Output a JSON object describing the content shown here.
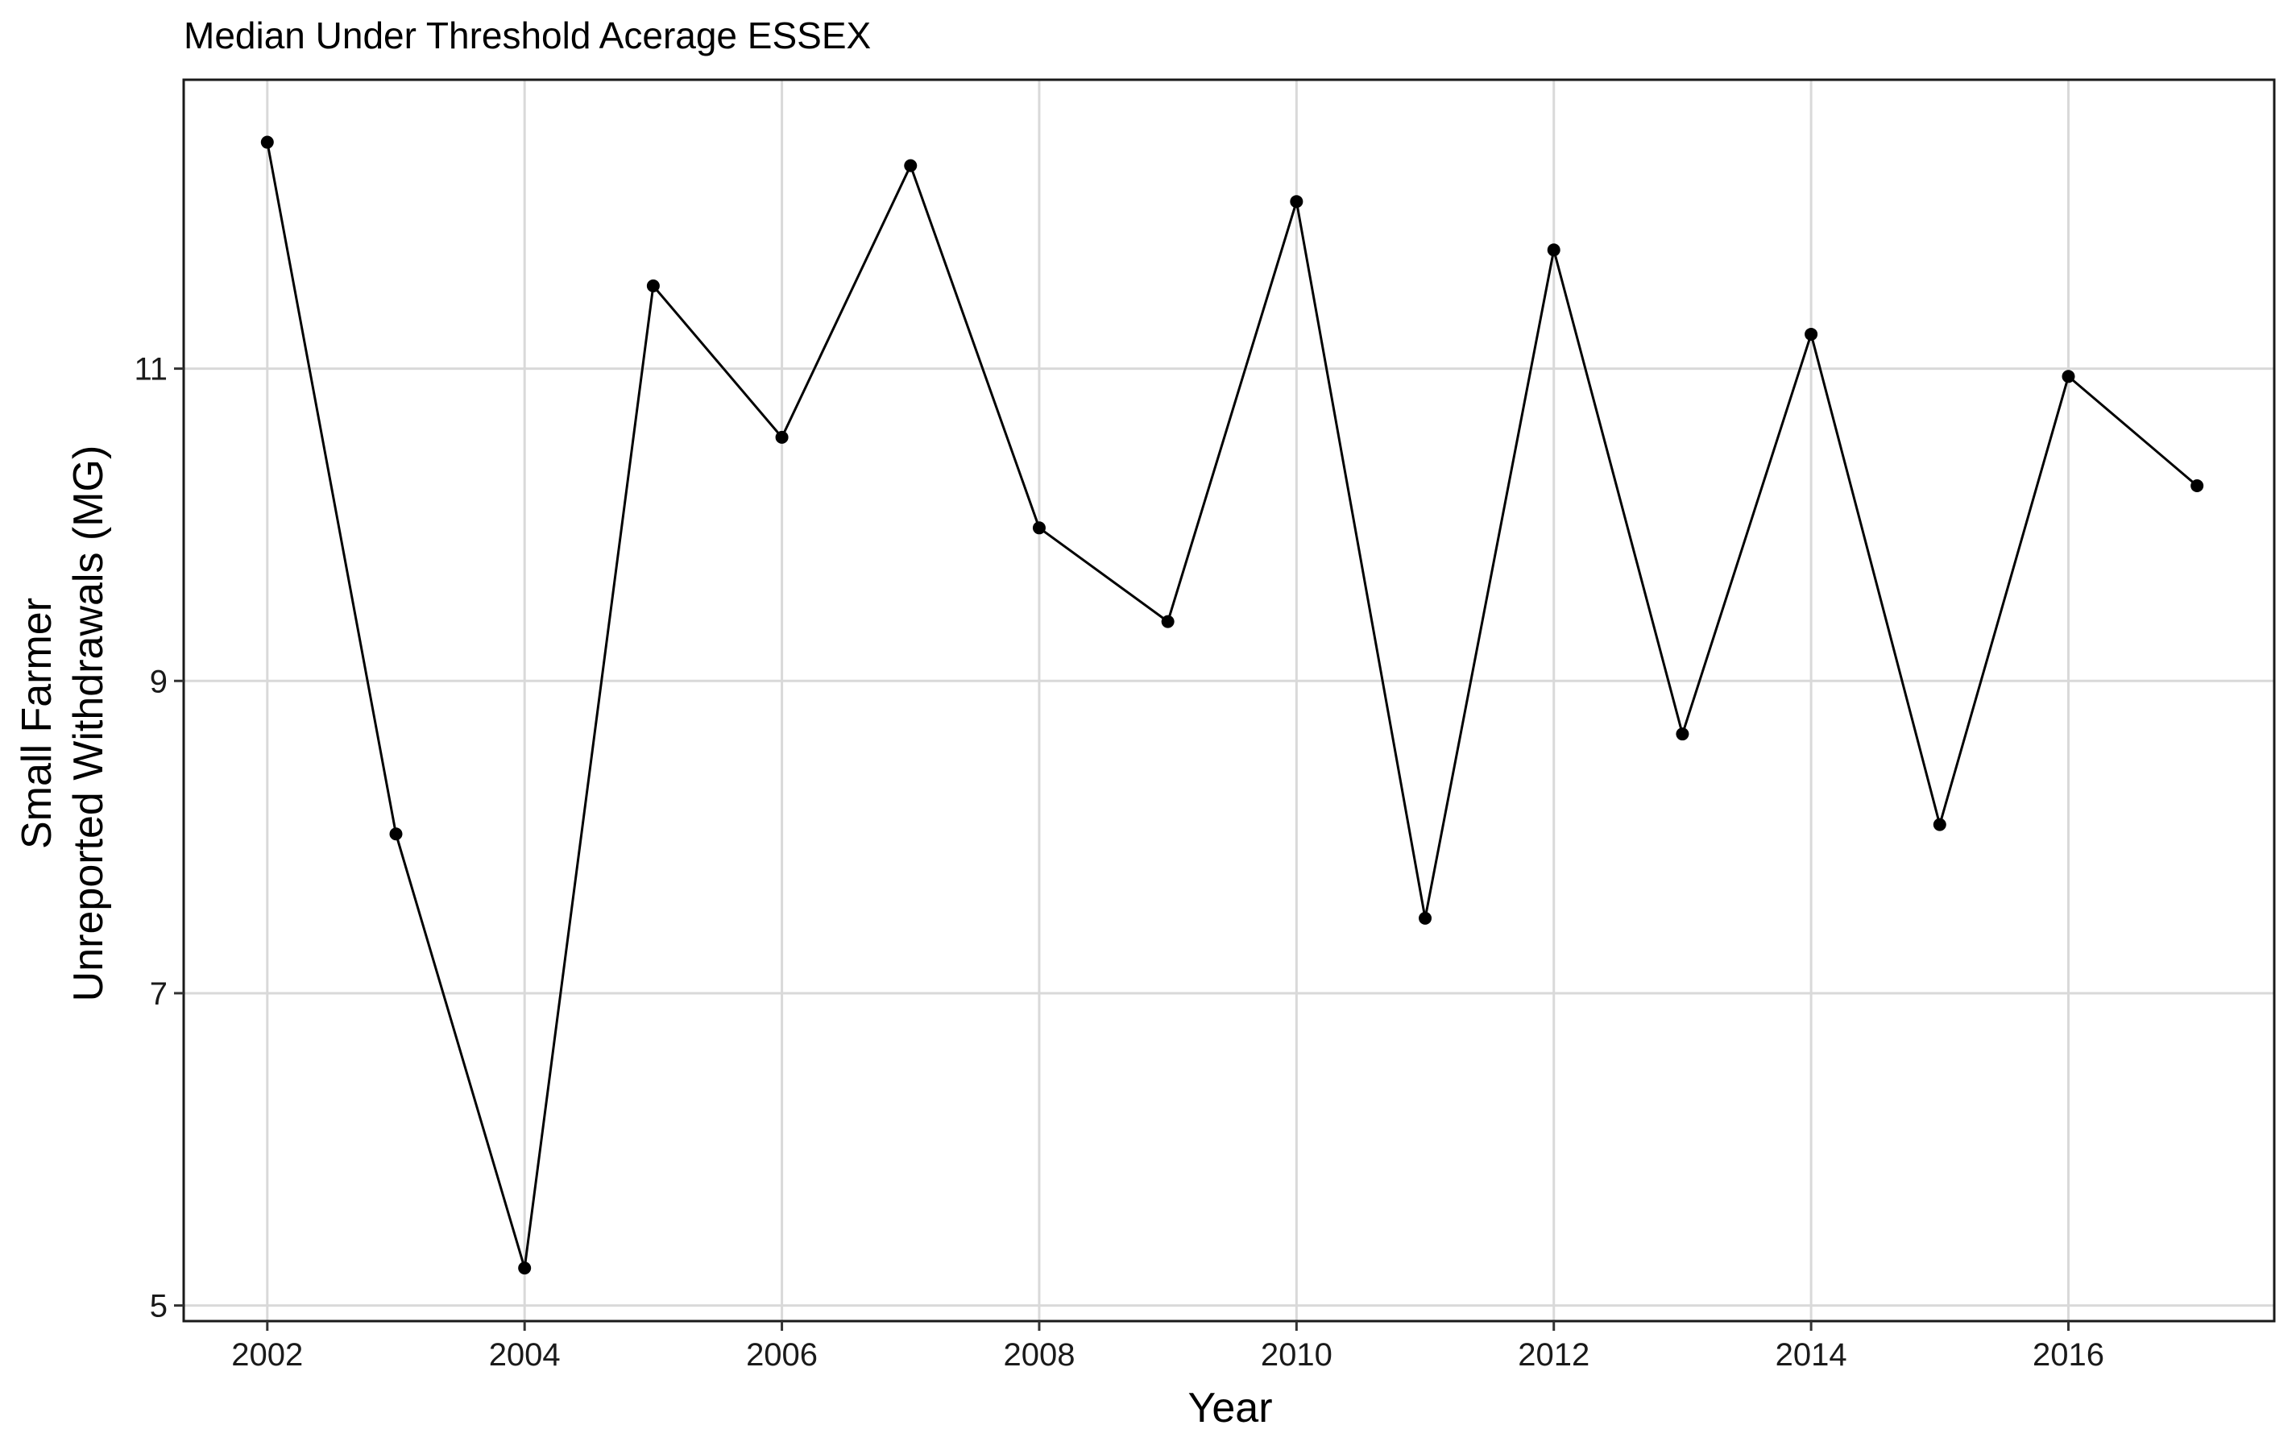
{
  "chart_data": {
    "type": "line",
    "title": "Median Under Threshold Acerage ESSEX",
    "xlabel": "Year",
    "ylabel_lines": [
      "Small Farmer",
      "Unreported Withdrawals (MG)"
    ],
    "x": [
      2002,
      2003,
      2004,
      2005,
      2006,
      2007,
      2008,
      2009,
      2010,
      2011,
      2012,
      2013,
      2014,
      2015,
      2016,
      2017
    ],
    "series": [
      {
        "values": [
          12.45,
          8.02,
          5.24,
          11.53,
          10.56,
          12.3,
          9.98,
          9.38,
          12.07,
          7.48,
          11.76,
          8.66,
          11.22,
          8.08,
          10.95,
          10.25
        ]
      }
    ],
    "xlim": [
      2001.35,
      2017.6
    ],
    "ylim": [
      4.9,
      12.85
    ],
    "xticks": [
      "2002",
      "2004",
      "2006",
      "2008",
      "2010",
      "2012",
      "2014",
      "2016"
    ],
    "yticks": [
      "5",
      "7",
      "9",
      "11"
    ],
    "grid": true,
    "legend": "none",
    "colors": {
      "line": "#000000",
      "grid": "#d9d9d9",
      "background": "#ffffff"
    }
  }
}
